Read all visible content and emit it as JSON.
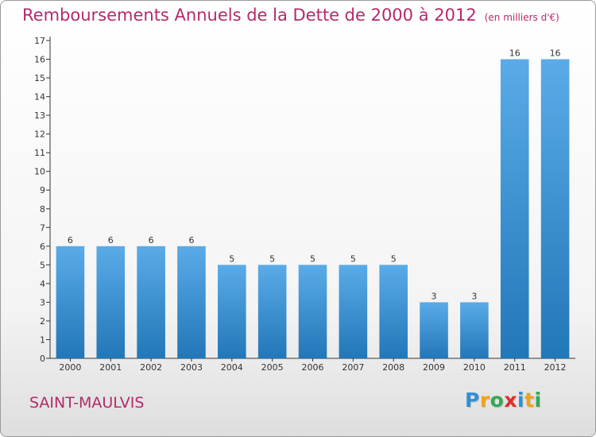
{
  "header": {
    "title": "Remboursements Annuels de la Dette de 2000 à 2012",
    "unit": "(en milliers d'€)"
  },
  "footer": {
    "commune": "SAINT-MAULVIS",
    "logo_letters": [
      "P",
      "r",
      "o",
      "x",
      "i",
      "t",
      "i"
    ],
    "logo_colors": [
      "#2f8fd8",
      "#f0a21a",
      "#35a853",
      "#e02d2d",
      "#2f8fd8",
      "#f0a21a",
      "#35a853"
    ]
  },
  "colors": {
    "bar_top": "#5aabe8",
    "bar_bottom": "#2277b8",
    "accent": "#b52a6b",
    "axis": "#333333"
  },
  "chart_data": {
    "type": "bar",
    "title": "Remboursements Annuels de la Dette de 2000 à 2012",
    "subtitle": "(en milliers d'€)",
    "categories": [
      "2000",
      "2001",
      "2002",
      "2003",
      "2004",
      "2005",
      "2006",
      "2007",
      "2008",
      "2009",
      "2010",
      "2011",
      "2012"
    ],
    "values": [
      6,
      6,
      6,
      6,
      5,
      5,
      5,
      5,
      5,
      3,
      3,
      16,
      16
    ],
    "data_labels": [
      "6",
      "6",
      "6",
      "6",
      "5",
      "5",
      "5",
      "5",
      "5",
      "3",
      "3",
      "16",
      "16"
    ],
    "yticks": [
      "0",
      "1",
      "2",
      "3",
      "4",
      "5",
      "6",
      "7",
      "8",
      "9",
      "10",
      "11",
      "12",
      "13",
      "14",
      "15",
      "16",
      "17"
    ],
    "ylim": [
      0,
      17
    ],
    "grid": false,
    "legend": "none"
  }
}
